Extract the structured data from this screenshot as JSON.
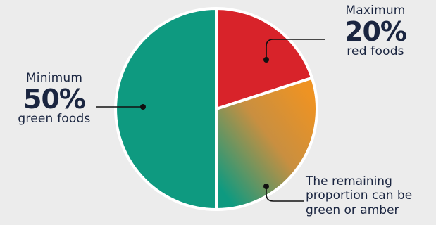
{
  "colors": {
    "green": "#0e9a80",
    "red": "#d8232a",
    "amber": "#ee9323",
    "separator": "#ffffff",
    "leader": "#111111",
    "text": "#1a2540"
  },
  "chart_data": {
    "type": "pie",
    "slices": [
      {
        "label": "red foods",
        "value": 20,
        "color": "#d8232a"
      },
      {
        "label": "green or amber",
        "value": 30,
        "color": "#ee9323"
      },
      {
        "label": "green foods",
        "value": 50,
        "color": "#0e9a80"
      }
    ],
    "annotations": {
      "maximum": {
        "prefix": "Maximum",
        "value": "20%",
        "suffix": "red foods"
      },
      "minimum": {
        "prefix": "Minimum",
        "value": "50%",
        "suffix": "green foods"
      },
      "remaining": {
        "line1": "The remaining",
        "line2": "proportion can be",
        "line3": "green or amber"
      }
    }
  }
}
